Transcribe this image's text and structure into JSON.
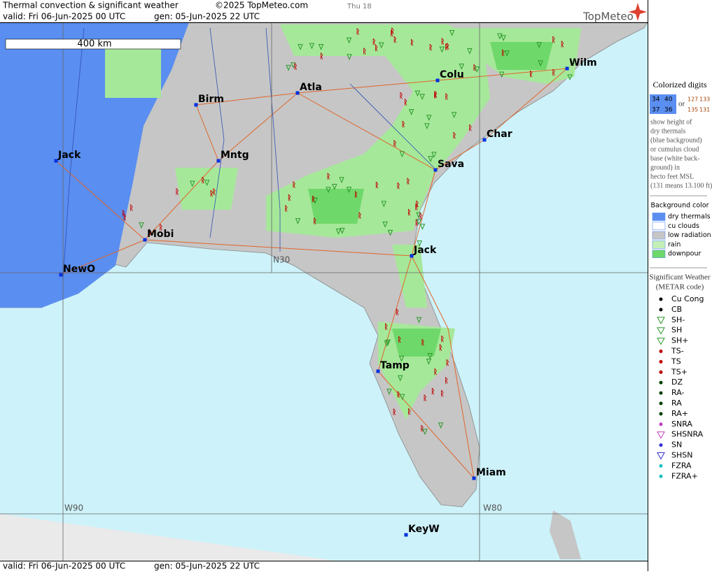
{
  "header": {
    "title": "Thermal convection & significant weather",
    "copyright": "©2025 TopMeteo.com",
    "day": "Thu 18",
    "valid": "valid:  Fri  06-Jun-2025  00 UTC",
    "gen": "gen: 05-Jun-2025 22 UTC",
    "logo": "TopMeteo"
  },
  "map": {
    "scale": "400 km",
    "cities": [
      "Birm",
      "Atla",
      "Colu",
      "Wilm",
      "Char",
      "Mntg",
      "Jack",
      "Sava",
      "Mobi",
      "Jack",
      "NewO",
      "Tamp",
      "Miam",
      "KeyW"
    ],
    "grid_labels": [
      "N30",
      "W90",
      "W80"
    ]
  },
  "legend": {
    "digits_title": "Colorized digits",
    "dry_samples": [
      "34",
      "40",
      "37",
      "36"
    ],
    "or": "or",
    "cu_samples": [
      "127",
      "133",
      "135",
      "131"
    ],
    "description": [
      "show height of",
      "dry thermals",
      "(blue background)",
      "or cumulus cloud",
      "base (white back-",
      "ground) in",
      "hecto feet MSL",
      "(131 means 13.100 ft)"
    ],
    "background_title": "Background color",
    "background_items": [
      "dry thermals",
      "cu clouds",
      "low radiation",
      "rain",
      "downpour"
    ],
    "weather_title": "Significant Weather",
    "weather_subtitle": "(METAR code)",
    "weather_items": [
      "Cu Cong",
      "CB",
      "SH-",
      "SH",
      "SH+",
      "TS-",
      "TS",
      "TS+",
      "DZ",
      "RA-",
      "RA",
      "RA+",
      "SNRA",
      "SHSNRA",
      "SN",
      "SHSN",
      "FZRA",
      "FZRA+"
    ]
  },
  "footer": {
    "valid": "valid:  Fri  06-Jun-2025  00 UTC",
    "gen": "gen: 05-Jun-2025 22 UTC"
  }
}
